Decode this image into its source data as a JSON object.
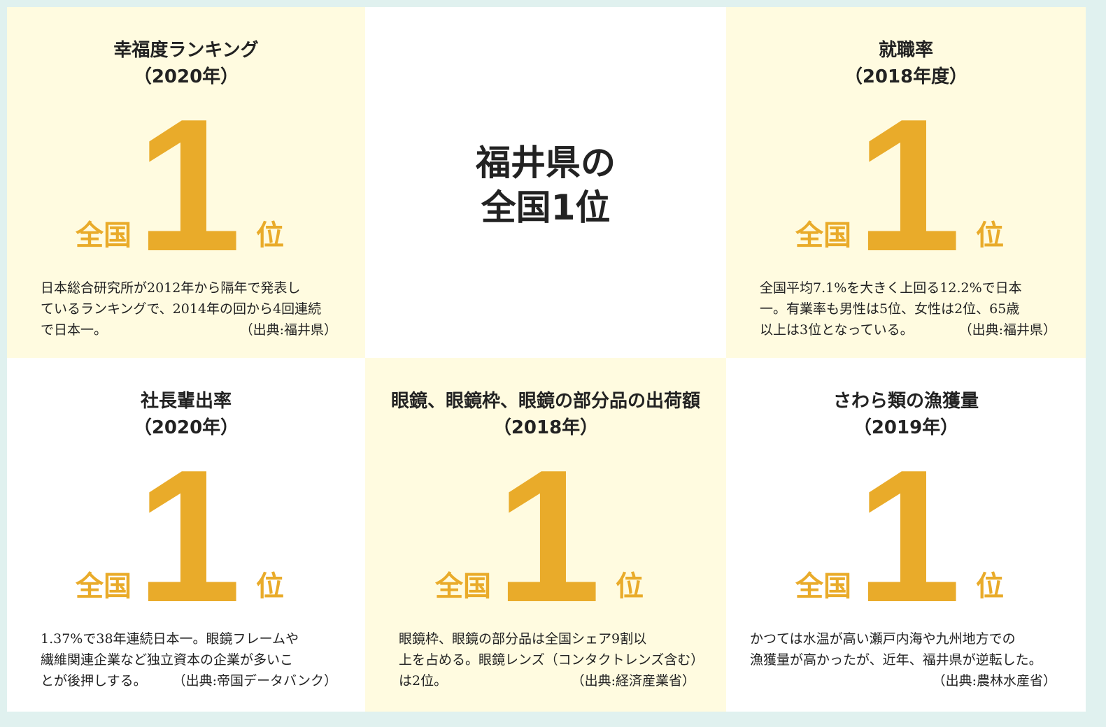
{
  "center_title": [
    "福井県の",
    "全国1位"
  ],
  "cards": [
    {
      "title": "幸福度ランキング",
      "period": "（2020年）",
      "prefix": "全国",
      "rank": 1,
      "suffix": "位",
      "description": [
        "日本総合研究所が2012年から隔年で発表し",
        "ているランキングで、2014年の回から4回連続",
        "で日本一。"
      ],
      "source": "（出典:福井県）"
    },
    {
      "title": "就職率",
      "period": "（2018年度）",
      "prefix": "全国",
      "rank": 1,
      "suffix": "位",
      "description": [
        "全国平均7.1%を大きく上回る12.2%で日本",
        "一。有業率も男性は5位、女性は2位、65歳",
        "以上は3位となっている。"
      ],
      "source": "（出典:福井県）"
    },
    {
      "title": "社長輩出率",
      "period": "（2020年）",
      "prefix": "全国",
      "rank": 1,
      "suffix": "位",
      "description": [
        "1.37%で38年連続日本一。眼鏡フレームや",
        "繊維関連企業など独立資本の企業が多いこ",
        "とが後押しする。"
      ],
      "source": "（出典:帝国データバンク）"
    },
    {
      "title": "眼鏡、眼鏡枠、眼鏡の部分品の出荷額",
      "period": "（2018年）",
      "prefix": "全国",
      "rank": 1,
      "suffix": "位",
      "description": [
        "眼鏡枠、眼鏡の部分品は全国シェア9割以",
        "上を占める。眼鏡レンズ（コンタクトレンズ含む）",
        "は2位。"
      ],
      "source": "（出典:経済産業省）"
    },
    {
      "title": "さわら類の漁獲量",
      "period": "（2019年）",
      "prefix": "全国",
      "rank": 1,
      "suffix": "位",
      "description": [
        "かつては水温が高い瀬戸内海や九州地方での",
        "漁獲量が高かったが、近年、福井県が逆転した。"
      ],
      "source": "（出典:農林水産省）"
    }
  ]
}
